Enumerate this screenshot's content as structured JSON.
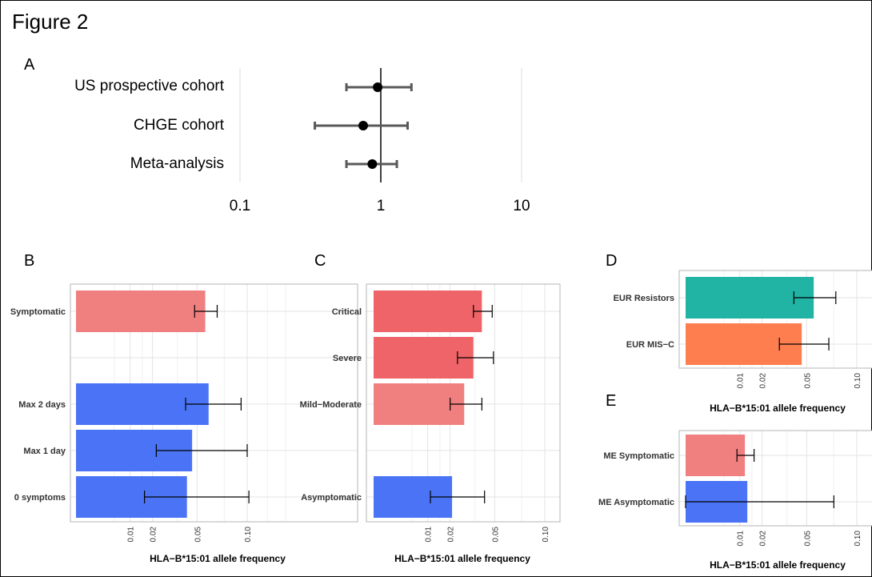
{
  "figure_title": "Figure 2",
  "colors": {
    "pink": "#f08080",
    "blue": "#4a74f5",
    "red": "#ee6468",
    "teal": "#21b3a4",
    "orange": "#fe7e50",
    "grid": "#e3e3e3",
    "forest": "#595959"
  },
  "chart_data": [
    {
      "panel": "A",
      "type": "scatter",
      "scale": "log",
      "categories": [
        "US prospective cohort",
        "CHGE cohort",
        "Meta-analysis"
      ],
      "estimate": [
        0.95,
        0.75,
        0.87
      ],
      "lower": [
        0.57,
        0.34,
        0.57
      ],
      "upper": [
        1.65,
        1.55,
        1.3
      ],
      "xticks": [
        "0.1",
        "1",
        "10"
      ],
      "reference_line": 1
    },
    {
      "panel": "B",
      "type": "bar",
      "orientation": "horizontal",
      "scale": "sqrt",
      "categories": [
        "Symptomatic",
        "Max 2 days",
        "Max 1 day",
        "0 symptoms"
      ],
      "values": [
        0.057,
        0.06,
        0.046,
        0.042
      ],
      "lower": [
        0.048,
        0.041,
        0.022,
        0.016
      ],
      "upper": [
        0.068,
        0.093,
        0.1,
        0.102
      ],
      "colors": [
        "pink",
        "blue",
        "blue",
        "blue"
      ],
      "xticks": [
        "0.01",
        "0.02",
        "0.05",
        "0.10"
      ],
      "xlabel": "HLA−B*15:01 allele frequency"
    },
    {
      "panel": "C",
      "type": "bar",
      "orientation": "horizontal",
      "scale": "sqrt",
      "categories": [
        "Critical",
        "Severe",
        "Mild−Moderate",
        "Asymptomatic"
      ],
      "values": [
        0.04,
        0.034,
        0.028,
        0.021
      ],
      "lower": [
        0.034,
        0.024,
        0.02,
        0.011
      ],
      "upper": [
        0.048,
        0.049,
        0.04,
        0.042
      ],
      "colors": [
        "red",
        "red",
        "pink",
        "blue"
      ],
      "xticks": [
        "0.01",
        "0.02",
        "0.05",
        "0.10"
      ],
      "xlabel": "HLA−B*15:01 allele frequency"
    },
    {
      "panel": "D",
      "type": "bar",
      "orientation": "horizontal",
      "scale": "sqrt",
      "categories": [
        "EUR Resistors",
        "EUR MIS−C"
      ],
      "values": [
        0.056,
        0.046
      ],
      "lower": [
        0.04,
        0.03
      ],
      "upper": [
        0.077,
        0.07
      ],
      "colors": [
        "teal",
        "orange"
      ],
      "xticks": [
        "0.01",
        "0.02",
        "0.05",
        "0.10"
      ],
      "xlabel": "HLA−B*15:01 allele frequency"
    },
    {
      "panel": "E",
      "type": "bar",
      "orientation": "horizontal",
      "scale": "sqrt",
      "categories": [
        "ME Symptomatic",
        "ME Asymptomatic"
      ],
      "values": [
        0.012,
        0.013
      ],
      "lower": [
        0.009,
        0.0
      ],
      "upper": [
        0.016,
        0.075
      ],
      "colors": [
        "pink",
        "blue"
      ],
      "xticks": [
        "0.01",
        "0.02",
        "0.05",
        "0.10"
      ],
      "xlabel": "HLA−B*15:01 allele frequency"
    }
  ]
}
